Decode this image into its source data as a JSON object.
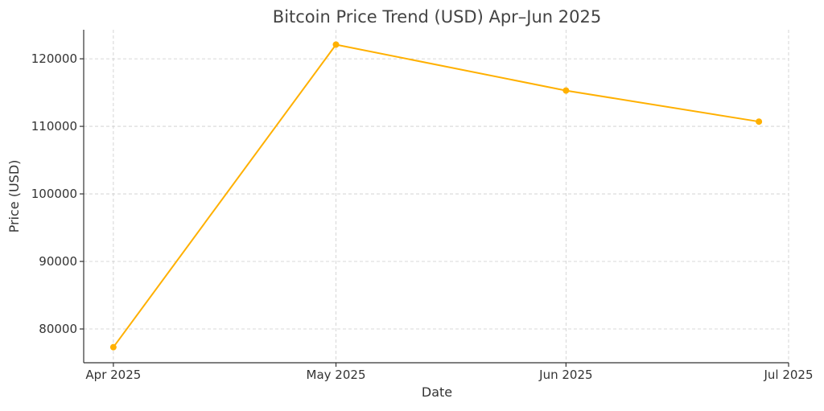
{
  "chart_data": {
    "type": "line",
    "title": "Bitcoin Price Trend (USD) Apr–Jun 2025",
    "xlabel": "Date",
    "ylabel": "Price (USD)",
    "x_axis_type": "date",
    "xlim": [
      "2025-03-28",
      "2025-07-01"
    ],
    "ylim": [
      75000,
      124300
    ],
    "x_ticks": [
      {
        "date": "2025-04-01",
        "label": "Apr 2025"
      },
      {
        "date": "2025-05-01",
        "label": "May 2025"
      },
      {
        "date": "2025-06-01",
        "label": "Jun 2025"
      },
      {
        "date": "2025-07-01",
        "label": "Jul 2025"
      }
    ],
    "y_ticks": [
      80000,
      90000,
      100000,
      110000,
      120000
    ],
    "grid": true,
    "legend": false,
    "series": [
      {
        "color": "#FFB000",
        "marker": "circle",
        "points": [
          {
            "x": "2025-04-01",
            "y": 77300
          },
          {
            "x": "2025-05-01",
            "y": 122100
          },
          {
            "x": "2025-06-01",
            "y": 115300
          },
          {
            "x": "2025-06-27",
            "y": 110700
          }
        ]
      }
    ]
  }
}
